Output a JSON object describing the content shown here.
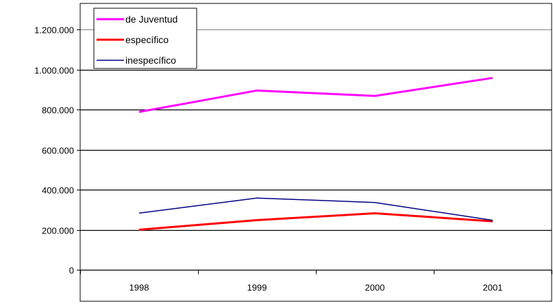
{
  "chart_data": {
    "type": "line",
    "title": "",
    "xlabel": "",
    "ylabel": "",
    "categories": [
      "1998",
      "1999",
      "2000",
      "2001"
    ],
    "ylim": [
      0,
      1200000
    ],
    "yticks": [
      0,
      200000,
      400000,
      600000,
      800000,
      1000000,
      1200000
    ],
    "ytick_labels": [
      "0",
      "200.000",
      "400.000",
      "600.000",
      "800.000",
      "1.000.000",
      "1.200.000"
    ],
    "grid": true,
    "legend_position": "top-left",
    "series": [
      {
        "name": "de Juventud",
        "color": "#ff00ff",
        "values": [
          788000,
          895000,
          868000,
          958000
        ]
      },
      {
        "name": "específico",
        "color": "#ff0000",
        "values": [
          200000,
          248000,
          282000,
          242000
        ]
      },
      {
        "name": "inespecífico",
        "color": "#000080",
        "values": [
          283000,
          358000,
          336000,
          247000
        ]
      }
    ]
  }
}
